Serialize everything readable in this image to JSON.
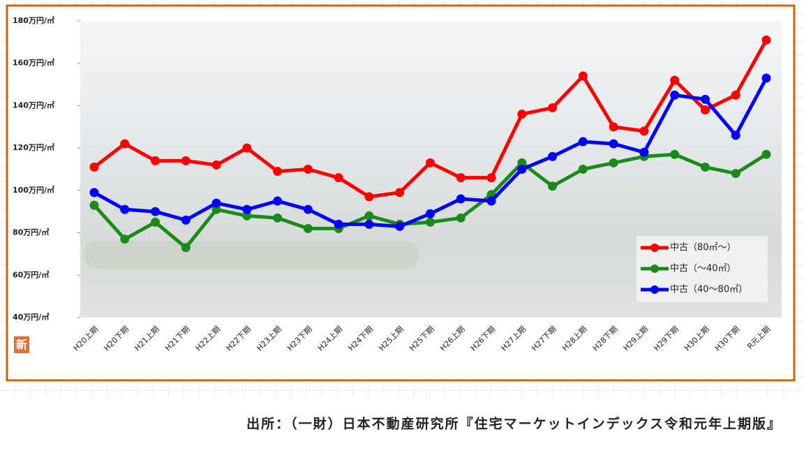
{
  "chart_data": {
    "type": "line",
    "categories": [
      "H20上期",
      "H20下期",
      "H21上期",
      "H21下期",
      "H22上期",
      "H22下期",
      "H23上期",
      "H23下期",
      "H24上期",
      "H24下期",
      "H25上期",
      "H25下期",
      "H26上期",
      "H26下期",
      "H27上期",
      "H27下期",
      "H28上期",
      "H28下期",
      "H29上期",
      "H29下期",
      "H30上期",
      "H30下期",
      "R元上期"
    ],
    "series": [
      {
        "name": "中古（80㎡～）",
        "color": "#ff0000",
        "values": [
          111,
          122,
          114,
          114,
          112,
          120,
          109,
          110,
          106,
          97,
          99,
          113,
          106,
          106,
          136,
          139,
          154,
          130,
          128,
          152,
          138,
          145,
          171
        ]
      },
      {
        "name": "中古（～40㎡）",
        "color": "#1a8a1a",
        "values": [
          93,
          77,
          85,
          73,
          91,
          88,
          87,
          82,
          82,
          88,
          84,
          85,
          87,
          98,
          113,
          102,
          110,
          113,
          116,
          117,
          111,
          108,
          117
        ]
      },
      {
        "name": "中古（40～80㎡）",
        "color": "#0000ff",
        "values": [
          99,
          91,
          90,
          86,
          94,
          91,
          95,
          91,
          84,
          84,
          83,
          89,
          96,
          95,
          110,
          116,
          123,
          122,
          118,
          145,
          143,
          126,
          153
        ]
      }
    ],
    "ylim": [
      40,
      180
    ],
    "yticks": [
      {
        "value": 40,
        "label": "40万円/㎡"
      },
      {
        "value": 60,
        "label": "60万円/㎡"
      },
      {
        "value": 80,
        "label": "80万円/㎡"
      },
      {
        "value": 100,
        "label": "100万円/㎡"
      },
      {
        "value": 120,
        "label": "120万円/㎡"
      },
      {
        "value": 140,
        "label": "140万円/㎡"
      },
      {
        "value": 160,
        "label": "160万円/㎡"
      },
      {
        "value": 180,
        "label": "180万円/㎡"
      }
    ],
    "legend": "lower right",
    "badge": "新",
    "source": "出所：（一財）日本不動産研究所『住宅マーケットインデックス令和元年上期版』"
  }
}
